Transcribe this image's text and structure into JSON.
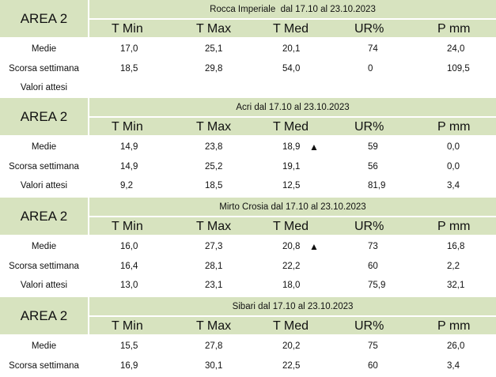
{
  "column_headers": [
    "T Min",
    "T Max",
    "T Med",
    "UR%",
    "P mm"
  ],
  "blocks": [
    {
      "area": "AREA 2",
      "title": "Rocca Imperiale  dal 17.10 al 23.10.2023",
      "rows": [
        {
          "label": "Medie",
          "values": [
            "17,0",
            "25,1",
            "20,1",
            "74",
            "24,0"
          ]
        },
        {
          "label": "Scorsa settimana",
          "values": [
            "18,5",
            "29,8",
            "54,0",
            "0",
            "109,5"
          ]
        },
        {
          "label": "Valori attesi",
          "values": [
            "",
            "",
            "",
            "",
            ""
          ]
        }
      ]
    },
    {
      "area": "AREA 2",
      "title": "Acri dal 17.10 al 23.10.2023",
      "rows": [
        {
          "label": "Medie",
          "values": [
            "14,9",
            "23,8",
            "18,9",
            "59",
            "0,0"
          ],
          "trend": "▲"
        },
        {
          "label": "Scorsa settimana",
          "values": [
            "14,9",
            "25,2",
            "19,1",
            "56",
            "0,0"
          ]
        },
        {
          "label": "Valori attesi",
          "values": [
            "9,2",
            "18,5",
            "12,5",
            "81,9",
            "3,4"
          ]
        }
      ]
    },
    {
      "area": "AREA 2",
      "title": "Mirto Crosia dal 17.10 al 23.10.2023",
      "rows": [
        {
          "label": "Medie",
          "values": [
            "16,0",
            "27,3",
            "20,8",
            "73",
            "16,8"
          ],
          "trend": "▲"
        },
        {
          "label": "Scorsa settimana",
          "values": [
            "16,4",
            "28,1",
            "22,2",
            "60",
            "2,2"
          ]
        },
        {
          "label": "Valori attesi",
          "values": [
            "13,0",
            "23,1",
            "18,0",
            "75,9",
            "32,1"
          ]
        }
      ]
    },
    {
      "area": "AREA 2",
      "title": "Sibari dal 17.10 al 23.10.2023",
      "rows": [
        {
          "label": "Medie",
          "values": [
            "15,5",
            "27,8",
            "20,2",
            "75",
            "26,0"
          ]
        },
        {
          "label": "Scorsa settimana",
          "values": [
            "16,9",
            "30,1",
            "22,5",
            "60",
            "3,4"
          ]
        }
      ]
    }
  ]
}
